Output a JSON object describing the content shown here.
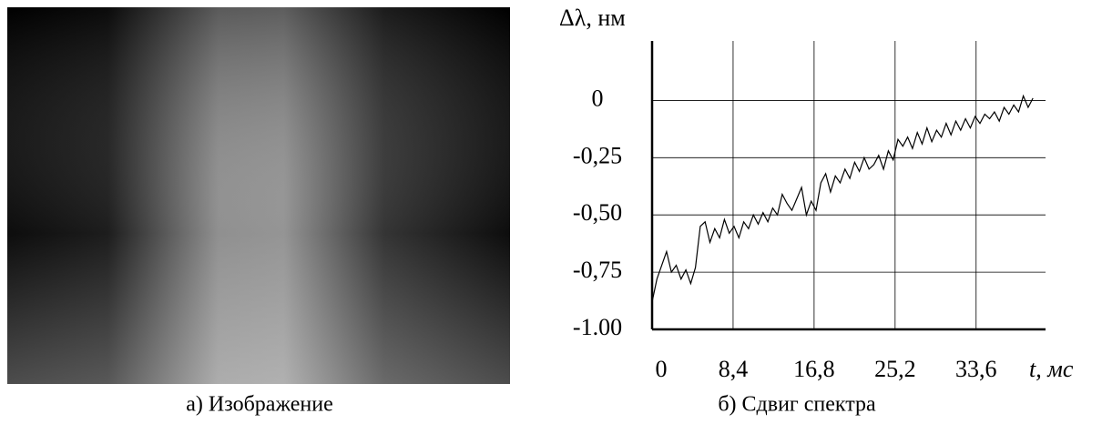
{
  "image": {
    "caption": "а) Изображение"
  },
  "chart_data": {
    "type": "line",
    "ylabel": "Δλ, нм",
    "xlabel": "t, мс",
    "caption": "б) Сдвиг спектра",
    "xlim": [
      0,
      40.8
    ],
    "ylim": [
      -1,
      0.26
    ],
    "xticks": [
      0,
      {
        "value": 8.4,
        "label": "8,4"
      },
      {
        "value": 16.8,
        "label": "16,8"
      },
      {
        "value": 25.2,
        "label": "25,2"
      },
      {
        "value": 33.6,
        "label": "33,6"
      }
    ],
    "yticks": [
      0,
      {
        "value": -0.25,
        "label": "-0,25"
      },
      {
        "value": -0.5,
        "label": "-0,50"
      },
      {
        "value": -0.75,
        "label": "-0,75"
      },
      {
        "value": -1,
        "label": "-1.00"
      }
    ],
    "grid": true,
    "series": [
      {
        "color": "#000000",
        "x": [
          0,
          0.5,
          1,
          1.5,
          2,
          2.5,
          3,
          3.5,
          4,
          4.5,
          5,
          5.5,
          6,
          6.5,
          7,
          7.5,
          8,
          8.5,
          9,
          9.5,
          10,
          10.5,
          11,
          11.5,
          12,
          12.5,
          13,
          13.5,
          14,
          14.5,
          15,
          15.5,
          16,
          16.5,
          17,
          17.5,
          18,
          18.5,
          19,
          19.5,
          20,
          20.5,
          21,
          21.5,
          22,
          22.5,
          23,
          23.5,
          24,
          24.5,
          25,
          25.5,
          26,
          26.5,
          27,
          27.5,
          28,
          28.5,
          29,
          29.5,
          30,
          30.5,
          31,
          31.5,
          32,
          32.5,
          33,
          33.5,
          34,
          34.5,
          35,
          35.5,
          36,
          36.5,
          37,
          37.5,
          38,
          38.5,
          39,
          39.5
        ],
        "values": [
          -0.88,
          -0.78,
          -0.72,
          -0.66,
          -0.75,
          -0.72,
          -0.78,
          -0.74,
          -0.8,
          -0.73,
          -0.55,
          -0.53,
          -0.62,
          -0.56,
          -0.6,
          -0.52,
          -0.58,
          -0.55,
          -0.6,
          -0.53,
          -0.56,
          -0.5,
          -0.54,
          -0.49,
          -0.53,
          -0.47,
          -0.5,
          -0.41,
          -0.45,
          -0.48,
          -0.43,
          -0.38,
          -0.5,
          -0.44,
          -0.48,
          -0.36,
          -0.32,
          -0.4,
          -0.33,
          -0.36,
          -0.3,
          -0.34,
          -0.27,
          -0.31,
          -0.25,
          -0.3,
          -0.28,
          -0.24,
          -0.3,
          -0.22,
          -0.26,
          -0.17,
          -0.2,
          -0.16,
          -0.21,
          -0.14,
          -0.19,
          -0.12,
          -0.18,
          -0.13,
          -0.16,
          -0.1,
          -0.15,
          -0.09,
          -0.13,
          -0.08,
          -0.12,
          -0.07,
          -0.1,
          -0.06,
          -0.08,
          -0.05,
          -0.09,
          -0.03,
          -0.06,
          -0.02,
          -0.05,
          0.02,
          -0.03,
          0.01
        ]
      }
    ]
  }
}
